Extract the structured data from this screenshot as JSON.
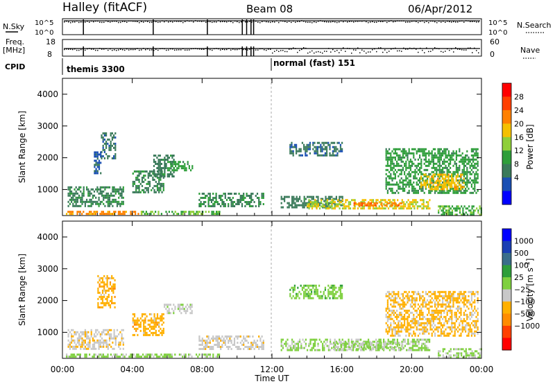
{
  "header": {
    "station": "Halley (fitACF)",
    "beam": "Beam 08",
    "date": "06/Apr/2012"
  },
  "strips": {
    "nsky_label": "N.Sky",
    "nsearch_label": "N.Search",
    "nsky_ticks": [
      "10^5",
      "10^0"
    ],
    "nsearch_ticks": [
      "10^5",
      "10^0"
    ],
    "freq_label_top": "Freq.",
    "freq_label_unit": "[MHz]",
    "freq_ticks": [
      "18",
      "8"
    ],
    "nave_label": "Nave",
    "nave_ticks": [
      "60",
      "0"
    ],
    "cpid_label": "CPID",
    "cpid_segments": [
      {
        "start_hour": 0.0,
        "label": "themis 3300"
      },
      {
        "start_hour": 12.0,
        "label": "normal (fast) 151"
      }
    ],
    "gap_marks_hours": [
      1.2,
      5.2,
      8.3,
      10.3,
      10.55,
      10.8,
      10.95
    ]
  },
  "colors": {
    "power_scale": [
      "#0000ff",
      "#1a4fb3",
      "#3a7a5a",
      "#2e9e3a",
      "#8fcf3a",
      "#f5c000",
      "#ff8000",
      "#ff4000",
      "#ff0000"
    ],
    "velocity_scale": [
      "#ff0000",
      "#ff4000",
      "#ff8c00",
      "#ffb000",
      "#c8c8c8",
      "#7fd03f",
      "#2e9e3a",
      "#3a6e8a",
      "#1a3fb3",
      "#0000ff"
    ]
  },
  "chart_data": [
    {
      "type": "heatmap",
      "name": "power",
      "ylabel": "Slant Range [km]",
      "xlabel": "",
      "xlim": [
        0,
        24
      ],
      "ylim": [
        180,
        4500
      ],
      "yticks": [
        "1000",
        "2000",
        "3000",
        "4000"
      ],
      "colorbar": {
        "label": "Power [dB]",
        "ticks": [
          "28",
          "24",
          "20",
          "16",
          "12",
          "8",
          "4"
        ],
        "range": [
          0,
          32
        ]
      },
      "regions": [
        {
          "x0": 0.2,
          "x1": 4.5,
          "y0": 230,
          "y1": 330,
          "value": 22
        },
        {
          "x0": 4.5,
          "x1": 9.0,
          "y0": 230,
          "y1": 330,
          "value": 14
        },
        {
          "x0": 0.3,
          "x1": 3.5,
          "y0": 500,
          "y1": 1100,
          "value": 10
        },
        {
          "x0": 2.2,
          "x1": 3.0,
          "y0": 2000,
          "y1": 2800,
          "value": 8
        },
        {
          "x0": 1.8,
          "x1": 2.2,
          "y0": 1500,
          "y1": 2200,
          "value": 6
        },
        {
          "x0": 4.0,
          "x1": 5.8,
          "y0": 900,
          "y1": 1600,
          "value": 10
        },
        {
          "x0": 5.2,
          "x1": 6.4,
          "y0": 1400,
          "y1": 2100,
          "value": 9
        },
        {
          "x0": 6.0,
          "x1": 7.4,
          "y0": 1600,
          "y1": 1900,
          "value": 12
        },
        {
          "x0": 7.8,
          "x1": 11.5,
          "y0": 500,
          "y1": 900,
          "value": 10
        },
        {
          "x0": 12.5,
          "x1": 16.0,
          "y0": 450,
          "y1": 800,
          "value": 9
        },
        {
          "x0": 14.0,
          "x1": 21.0,
          "y0": 420,
          "y1": 700,
          "value": 18
        },
        {
          "x0": 16.5,
          "x1": 19.5,
          "y0": 480,
          "y1": 600,
          "value": 24
        },
        {
          "x0": 13.0,
          "x1": 16.0,
          "y0": 2100,
          "y1": 2500,
          "value": 8
        },
        {
          "x0": 18.5,
          "x1": 23.8,
          "y0": 900,
          "y1": 2300,
          "value": 12
        },
        {
          "x0": 20.5,
          "x1": 23.0,
          "y0": 1000,
          "y1": 1500,
          "value": 20
        },
        {
          "x0": 21.5,
          "x1": 24.0,
          "y0": 230,
          "y1": 500,
          "value": 14
        }
      ]
    },
    {
      "type": "heatmap",
      "name": "velocity",
      "ylabel": "Slant Range [km]",
      "xlabel": "Time UT",
      "xlim": [
        0,
        24
      ],
      "ylim": [
        180,
        4500
      ],
      "xticks": [
        "00:00",
        "04:00",
        "08:00",
        "12:00",
        "16:00",
        "20:00",
        "00:00"
      ],
      "yticks": [
        "1000",
        "2000",
        "3000",
        "4000"
      ],
      "colorbar": {
        "label": "Velocity [m s",
        "label_exp": "-1",
        "label_close": "]",
        "ticks": [
          "1000",
          "500",
          "100",
          "25",
          "−25",
          "−100",
          "−500",
          "−1000"
        ],
        "range": [
          -1000,
          1000
        ]
      },
      "regions": [
        {
          "x0": 0.3,
          "x1": 3.5,
          "y0": 500,
          "y1": 1100,
          "value": -150
        },
        {
          "x0": 2.0,
          "x1": 3.0,
          "y0": 1800,
          "y1": 2800,
          "value": -300
        },
        {
          "x0": 4.0,
          "x1": 5.8,
          "y0": 900,
          "y1": 1600,
          "value": -300
        },
        {
          "x0": 5.8,
          "x1": 7.4,
          "y0": 1600,
          "y1": 1900,
          "value": -80
        },
        {
          "x0": 0.2,
          "x1": 9.0,
          "y0": 230,
          "y1": 330,
          "value": 60
        },
        {
          "x0": 7.8,
          "x1": 11.5,
          "y0": 500,
          "y1": 900,
          "value": -120
        },
        {
          "x0": 12.5,
          "x1": 21.0,
          "y0": 420,
          "y1": 800,
          "value": 40
        },
        {
          "x0": 15.5,
          "x1": 19.5,
          "y0": 450,
          "y1": 700,
          "value": 0
        },
        {
          "x0": 13.0,
          "x1": 16.0,
          "y0": 2100,
          "y1": 2500,
          "value": 120
        },
        {
          "x0": 18.5,
          "x1": 23.8,
          "y0": 900,
          "y1": 2300,
          "value": -250
        },
        {
          "x0": 21.5,
          "x1": 24.0,
          "y0": 230,
          "y1": 500,
          "value": 30
        }
      ]
    }
  ]
}
